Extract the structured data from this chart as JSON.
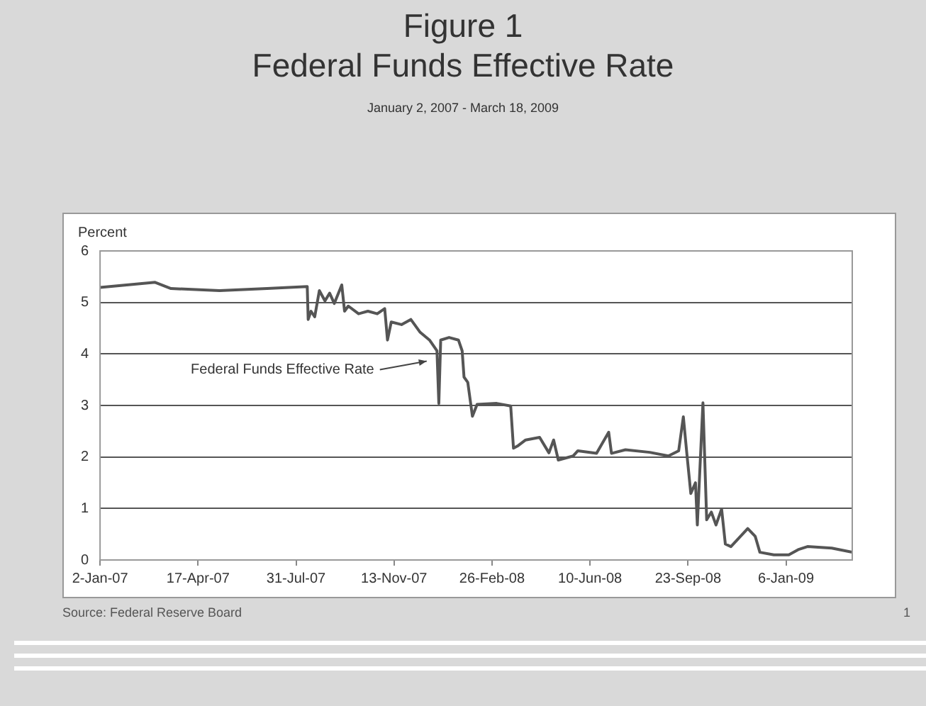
{
  "chart_data": {
    "type": "line",
    "title": "Figure 1\nFederal Funds Effective Rate",
    "subtitle": "January 2, 2007 - March 18, 2009",
    "ylabel": "Percent",
    "x": [
      "2007-01-02",
      "2007-03-02",
      "2007-03-19",
      "2007-05-10",
      "2007-06-30",
      "2007-08-12",
      "2007-08-13",
      "2007-08-16",
      "2007-08-20",
      "2007-08-25",
      "2007-08-31",
      "2007-09-05",
      "2007-09-10",
      "2007-09-18",
      "2007-09-21",
      "2007-09-25",
      "2007-10-06",
      "2007-10-16",
      "2007-10-26",
      "2007-11-03",
      "2007-11-06",
      "2007-11-10",
      "2007-11-21",
      "2007-12-01",
      "2007-12-11",
      "2007-12-21",
      "2007-12-29",
      "2007-12-31",
      "2008-01-02",
      "2008-01-11",
      "2008-01-21",
      "2008-01-25",
      "2008-01-27",
      "2008-01-31",
      "2008-02-05",
      "2008-02-10",
      "2008-03-02",
      "2008-03-17",
      "2008-03-20",
      "2008-03-25",
      "2008-04-02",
      "2008-04-17",
      "2008-04-27",
      "2008-05-02",
      "2008-05-07",
      "2008-05-23",
      "2008-05-28",
      "2008-06-17",
      "2008-06-30",
      "2008-07-03",
      "2008-07-18",
      "2008-08-13",
      "2008-09-02",
      "2008-09-13",
      "2008-09-18",
      "2008-09-22",
      "2008-09-26",
      "2008-10-01",
      "2008-10-03",
      "2008-10-09",
      "2008-10-13",
      "2008-10-18",
      "2008-10-23",
      "2008-10-29",
      "2008-11-02",
      "2008-11-08",
      "2008-11-26",
      "2008-12-04",
      "2008-12-09",
      "2008-12-24",
      "2009-01-09",
      "2009-01-19",
      "2009-01-29",
      "2009-02-24",
      "2009-03-18"
    ],
    "series": [
      {
        "color": "#555555",
        "values": [
          5.29,
          5.39,
          5.27,
          5.23,
          5.27,
          5.31,
          4.67,
          4.83,
          4.72,
          5.23,
          5.03,
          5.18,
          4.98,
          5.34,
          4.83,
          4.93,
          4.78,
          4.83,
          4.78,
          4.88,
          4.27,
          4.62,
          4.57,
          4.67,
          4.42,
          4.27,
          4.06,
          3.04,
          4.27,
          4.32,
          4.27,
          4.06,
          3.55,
          3.45,
          2.79,
          3.02,
          3.04,
          2.99,
          2.17,
          2.22,
          2.33,
          2.38,
          2.08,
          2.33,
          1.94,
          2.02,
          2.12,
          2.07,
          2.48,
          2.07,
          2.14,
          2.09,
          2.02,
          2.12,
          2.78,
          2.02,
          1.29,
          1.5,
          0.68,
          3.05,
          0.78,
          0.93,
          0.68,
          0.99,
          0.31,
          0.26,
          0.61,
          0.46,
          0.15,
          0.1,
          0.1,
          0.2,
          0.26,
          0.23,
          0.15
        ]
      }
    ],
    "xlim": [
      "2007-01-02",
      "2009-03-18"
    ],
    "xticks": [
      {
        "value": "2007-01-02",
        "label": "2-Jan-07"
      },
      {
        "value": "2007-04-17",
        "label": "17-Apr-07"
      },
      {
        "value": "2007-07-31",
        "label": "31-Jul-07"
      },
      {
        "value": "2007-11-13",
        "label": "13-Nov-07"
      },
      {
        "value": "2008-02-26",
        "label": "26-Feb-08"
      },
      {
        "value": "2008-06-10",
        "label": "10-Jun-08"
      },
      {
        "value": "2008-09-23",
        "label": "23-Sep-08"
      },
      {
        "value": "2009-01-06",
        "label": "6-Jan-09"
      }
    ],
    "ylim": [
      0,
      6
    ],
    "yticks": [
      0,
      1,
      2,
      3,
      4,
      5,
      6
    ],
    "grid": "y",
    "legend": false,
    "marker": "none",
    "line_style": "solid",
    "annotations": [
      {
        "text": "Federal Funds Effective Rate",
        "x": "2007-12-21",
        "y": 3.86
      },
      "Source: Federal Reserve Board",
      "1"
    ]
  }
}
